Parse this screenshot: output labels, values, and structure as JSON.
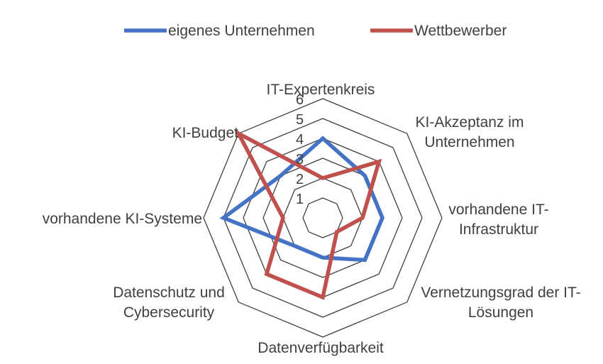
{
  "chart_data": {
    "type": "radar",
    "categories": [
      "IT-Expertenkreis",
      "KI-Akzeptanz im Unternehmen",
      "vorhandene IT-Infrastruktur",
      "Vernetzungsgrad der IT-Lösungen",
      "Datenverfügbarkeit",
      "Datenschutz und Cybersecurity",
      "vorhandene KI-Systeme",
      "KI-Budget"
    ],
    "category_lines": [
      [
        "IT-Expertenkreis"
      ],
      [
        "KI-Akzeptanz im",
        "Unternehmen"
      ],
      [
        "vorhandene IT-",
        "Infrastruktur"
      ],
      [
        "Vernetzungsgrad der IT-",
        "Lösungen"
      ],
      [
        "Datenverfügbarkeit"
      ],
      [
        "Datenschutz und",
        "Cybersecurity"
      ],
      [
        "vorhandene KI-Systeme"
      ],
      [
        "KI-Budget"
      ]
    ],
    "series": [
      {
        "name": "eigenes Unternehmen",
        "color": "#4472C4",
        "values": [
          4,
          3,
          3,
          3,
          2,
          2,
          5,
          3
        ]
      },
      {
        "name": "Wettbewerber",
        "color": "#C0504D",
        "values": [
          2,
          4,
          2,
          1,
          4,
          4,
          2,
          6
        ]
      }
    ],
    "r_range": [
      0,
      6
    ],
    "ticks": [
      "1",
      "2",
      "3",
      "4",
      "5",
      "6"
    ],
    "grid": true,
    "legend_position": "top"
  }
}
